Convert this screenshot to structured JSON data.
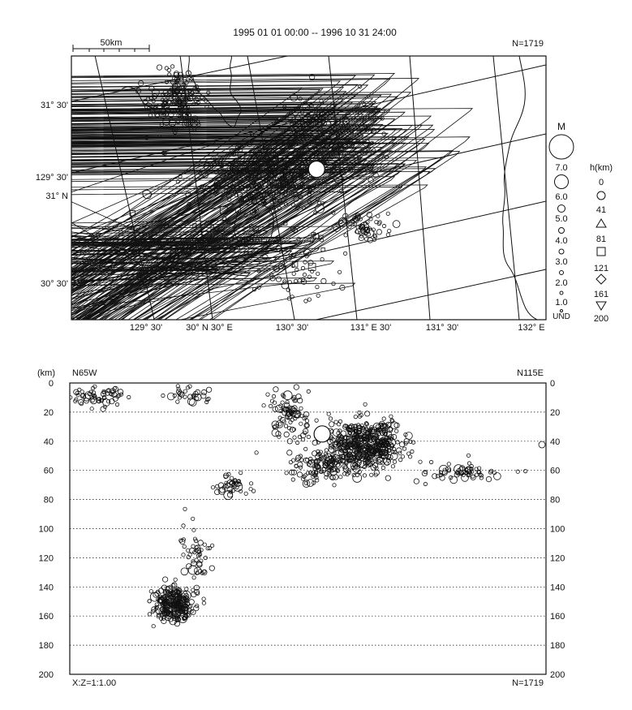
{
  "header": {
    "title": "1995 01 01 00:00 -- 1996 10 31 24:00",
    "count": "N=1719",
    "scale_label": "50km"
  },
  "map": {
    "lat_labels": [
      "31° 30'",
      "31° N",
      "30° 30'"
    ],
    "lat_label_vertical": "129° 30'",
    "lon_labels": [
      "129° 30'",
      "30° N 30° E",
      "130° 30'",
      "131° E 30'",
      "131° 30'",
      "132° E"
    ]
  },
  "legend": {
    "magnitude_title": "M",
    "magnitude_levels": [
      "7.0",
      "6.0",
      "5.0",
      "4.0",
      "3.0",
      "2.0",
      "1.0",
      "UND"
    ],
    "depth_title": "h(km)",
    "depth_levels": [
      "0",
      "41",
      "81",
      "121",
      "161",
      "200"
    ],
    "depth_symbols": [
      "circle",
      "triangle",
      "square",
      "diamond",
      "inverted-triangle"
    ]
  },
  "section": {
    "unit_label": "(km)",
    "left_direction": "N65W",
    "right_direction": "N115E",
    "ratio_label": "X:Z=1:1.00",
    "count": "N=1719",
    "depth_ticks": [
      "0",
      "20",
      "40",
      "60",
      "80",
      "100",
      "120",
      "140",
      "160",
      "180",
      "200"
    ]
  },
  "chart_data": [
    {
      "type": "scatter",
      "title": "1995 01 01 00:00 -- 1996 10 31 24:00",
      "subtitle": "N=1719",
      "xlabel": "",
      "ylabel": "",
      "x_tick_labels": [
        "129° 30'",
        "30° N 30° E",
        "130° 30'",
        "131° E 30'",
        "131° 30'",
        "132° E"
      ],
      "y_tick_labels": [
        "31° 30'",
        "31° N",
        "30° 30'"
      ],
      "grid": true,
      "clusters": [
        {
          "lon": 129.75,
          "lat": 31.55,
          "count": 160,
          "spread": [
            0.14,
            0.16
          ],
          "depth_class": "0-41"
        },
        {
          "lon": 130.35,
          "lat": 31.05,
          "count": 320,
          "spread": [
            0.3,
            0.15
          ],
          "depth_class": "0-41"
        },
        {
          "lon": 130.7,
          "lat": 31.3,
          "count": 160,
          "spread": [
            0.28,
            0.22
          ],
          "depth_class": "0-41"
        },
        {
          "lon": 130.95,
          "lat": 30.75,
          "count": 60,
          "spread": [
            0.12,
            0.07
          ],
          "depth_class": "0-41"
        },
        {
          "lon": 130.55,
          "lat": 30.45,
          "count": 50,
          "spread": [
            0.25,
            0.18
          ],
          "depth_class": "0-41"
        },
        {
          "lon": 130.95,
          "lat": 31.35,
          "count": 160,
          "spread": [
            0.5,
            0.3
          ],
          "depth_class": "41-81"
        },
        {
          "lon": 130.4,
          "lat": 30.55,
          "count": 40,
          "spread": [
            0.45,
            0.15
          ],
          "depth_class": "41-81"
        },
        {
          "lon": 130.25,
          "lat": 30.75,
          "count": 40,
          "spread": [
            0.45,
            0.25
          ],
          "depth_class": "81-121"
        }
      ],
      "notable_events": [
        {
          "lon": 130.65,
          "lat": 31.12,
          "magnitude": 6.5,
          "depth_km": 35
        }
      ]
    },
    {
      "type": "scatter",
      "title": "",
      "xlabel": "",
      "ylabel": "(km)",
      "left_label": "N65W",
      "right_label": "N115E",
      "ylim": [
        200,
        0
      ],
      "y_ticks": [
        0,
        20,
        40,
        60,
        80,
        100,
        120,
        140,
        160,
        180,
        200
      ],
      "grid": true,
      "clusters": [
        {
          "x": 0.06,
          "depth": 10,
          "count": 60,
          "spread": [
            0.05,
            5
          ]
        },
        {
          "x": 0.25,
          "depth": 8,
          "count": 30,
          "spread": [
            0.04,
            5
          ]
        },
        {
          "x": 0.46,
          "depth": 22,
          "count": 90,
          "spread": [
            0.04,
            18
          ]
        },
        {
          "x": 0.62,
          "depth": 42,
          "count": 520,
          "spread": [
            0.07,
            14
          ]
        },
        {
          "x": 0.53,
          "depth": 58,
          "count": 120,
          "spread": [
            0.06,
            8
          ]
        },
        {
          "x": 0.83,
          "depth": 61,
          "count": 60,
          "spread": [
            0.09,
            6
          ]
        },
        {
          "x": 0.34,
          "depth": 70,
          "count": 40,
          "spread": [
            0.03,
            8
          ]
        },
        {
          "x": 0.26,
          "depth": 120,
          "count": 50,
          "spread": [
            0.03,
            18
          ]
        },
        {
          "x": 0.22,
          "depth": 152,
          "count": 260,
          "spread": [
            0.035,
            10
          ]
        }
      ],
      "notable_events": [
        {
          "x": 0.53,
          "depth": 35,
          "magnitude": 6.5
        }
      ]
    }
  ]
}
